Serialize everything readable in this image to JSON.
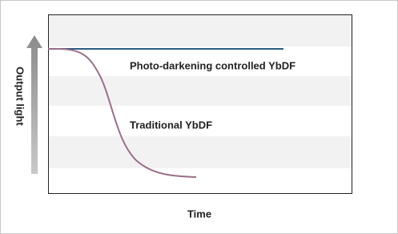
{
  "diagram": {
    "y_axis_label": "Output light",
    "x_axis_label": "Time",
    "curves": [
      {
        "label": "Photo-darkening controlled YbDF"
      },
      {
        "label": "Traditional YbDF"
      }
    ]
  }
}
